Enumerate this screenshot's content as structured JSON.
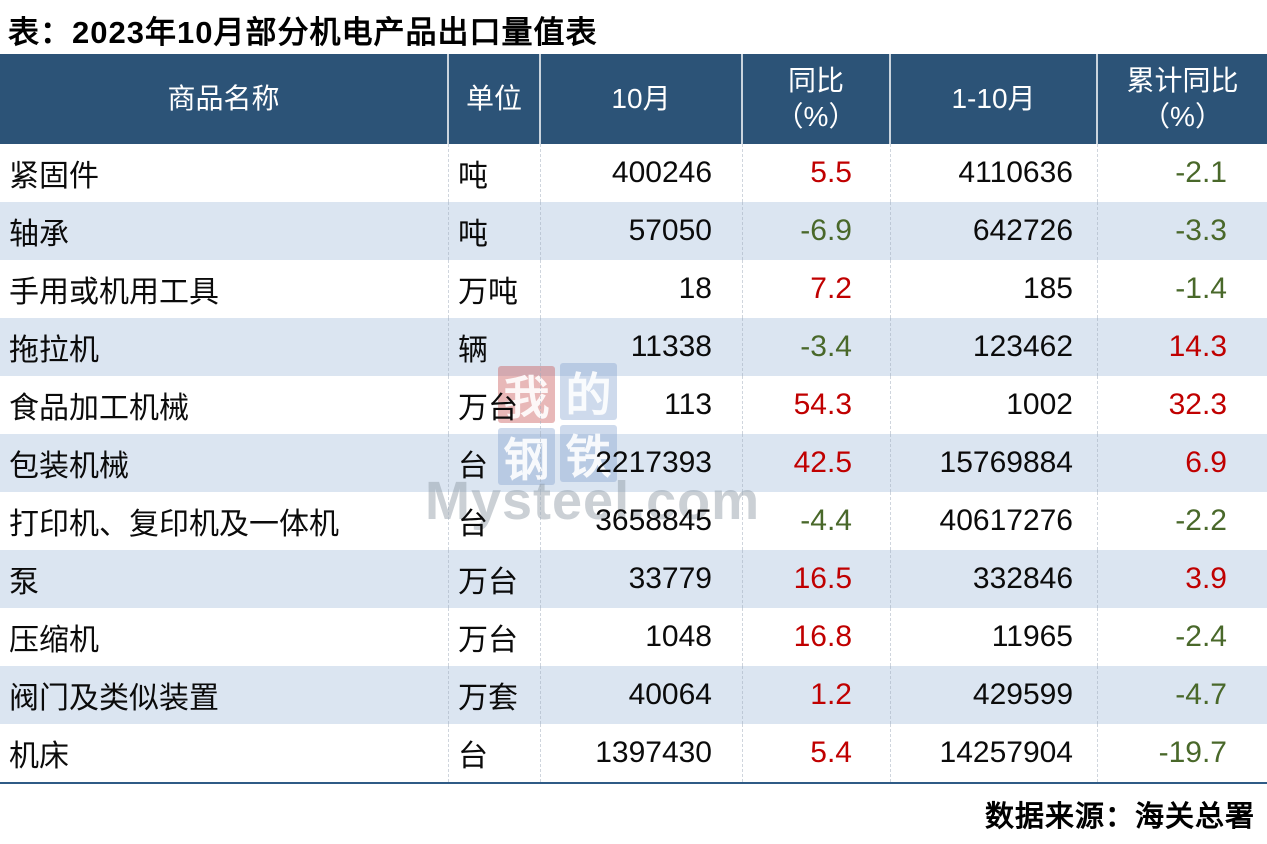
{
  "title": "表：2023年10月部分机电产品出口量值表",
  "footer": {
    "source": "数据来源：海关总署"
  },
  "colors": {
    "header_bg": "#2c5377",
    "row_alt": "#dbe5f1",
    "positive": "#c00000",
    "negative": "#49682a",
    "rule": "#2f5b86"
  },
  "watermark": {
    "squares": [
      "我",
      "的",
      "钢",
      "铁"
    ],
    "brand": "Mysteel.com"
  },
  "table": {
    "headers": [
      {
        "label": "商品名称"
      },
      {
        "label": "单位"
      },
      {
        "label": "10月"
      },
      {
        "label": "同比",
        "sub": "（%）"
      },
      {
        "label": "1-10月"
      },
      {
        "label": "累计同比",
        "sub": "（%）"
      }
    ],
    "rows": [
      {
        "name": "紧固件",
        "unit": "吨",
        "oct": "400246",
        "yoy": "5.5",
        "jan_oct": "4110636",
        "cum_yoy": "-2.1"
      },
      {
        "name": "轴承",
        "unit": "吨",
        "oct": "57050",
        "yoy": "-6.9",
        "jan_oct": "642726",
        "cum_yoy": "-3.3"
      },
      {
        "name": "手用或机用工具",
        "unit": "万吨",
        "oct": "18",
        "yoy": "7.2",
        "jan_oct": "185",
        "cum_yoy": "-1.4"
      },
      {
        "name": "拖拉机",
        "unit": "辆",
        "oct": "11338",
        "yoy": "-3.4",
        "jan_oct": "123462",
        "cum_yoy": "14.3"
      },
      {
        "name": "食品加工机械",
        "unit": "万台",
        "oct": "113",
        "yoy": "54.3",
        "jan_oct": "1002",
        "cum_yoy": "32.3"
      },
      {
        "name": "包装机械",
        "unit": "台",
        "oct": "2217393",
        "yoy": "42.5",
        "jan_oct": "15769884",
        "cum_yoy": "6.9"
      },
      {
        "name": "打印机、复印机及一体机",
        "unit": "台",
        "oct": "3658845",
        "yoy": "-4.4",
        "jan_oct": "40617276",
        "cum_yoy": "-2.2"
      },
      {
        "name": "泵",
        "unit": "万台",
        "oct": "33779",
        "yoy": "16.5",
        "jan_oct": "332846",
        "cum_yoy": "3.9"
      },
      {
        "name": "压缩机",
        "unit": "万台",
        "oct": "1048",
        "yoy": "16.8",
        "jan_oct": "11965",
        "cum_yoy": "-2.4"
      },
      {
        "name": "阀门及类似装置",
        "unit": "万套",
        "oct": "40064",
        "yoy": "1.2",
        "jan_oct": "429599",
        "cum_yoy": "-4.7"
      },
      {
        "name": "机床",
        "unit": "台",
        "oct": "1397430",
        "yoy": "5.4",
        "jan_oct": "14257904",
        "cum_yoy": "-19.7"
      }
    ]
  },
  "chart_data": {
    "type": "table",
    "title": "表：2023年10月部分机电产品出口量值表",
    "columns": [
      "商品名称",
      "单位",
      "10月",
      "同比（%）",
      "1-10月",
      "累计同比（%）"
    ],
    "rows": [
      [
        "紧固件",
        "吨",
        400246,
        5.5,
        4110636,
        -2.1
      ],
      [
        "轴承",
        "吨",
        57050,
        -6.9,
        642726,
        -3.3
      ],
      [
        "手用或机用工具",
        "万吨",
        18,
        7.2,
        185,
        -1.4
      ],
      [
        "拖拉机",
        "辆",
        11338,
        -3.4,
        123462,
        14.3
      ],
      [
        "食品加工机械",
        "万台",
        113,
        54.3,
        1002,
        32.3
      ],
      [
        "包装机械",
        "台",
        2217393,
        42.5,
        15769884,
        6.9
      ],
      [
        "打印机、复印机及一体机",
        "台",
        3658845,
        -4.4,
        40617276,
        -2.2
      ],
      [
        "泵",
        "万台",
        33779,
        16.5,
        332846,
        3.9
      ],
      [
        "压缩机",
        "万台",
        1048,
        16.8,
        11965,
        -2.4
      ],
      [
        "阀门及类似装置",
        "万套",
        40064,
        1.2,
        429599,
        -4.7
      ],
      [
        "机床",
        "台",
        1397430,
        5.4,
        14257904,
        -19.7
      ]
    ],
    "value_color_rule": "positive values red (#c00000), negative values green (#49682a)",
    "source": "数据来源：海关总署"
  }
}
